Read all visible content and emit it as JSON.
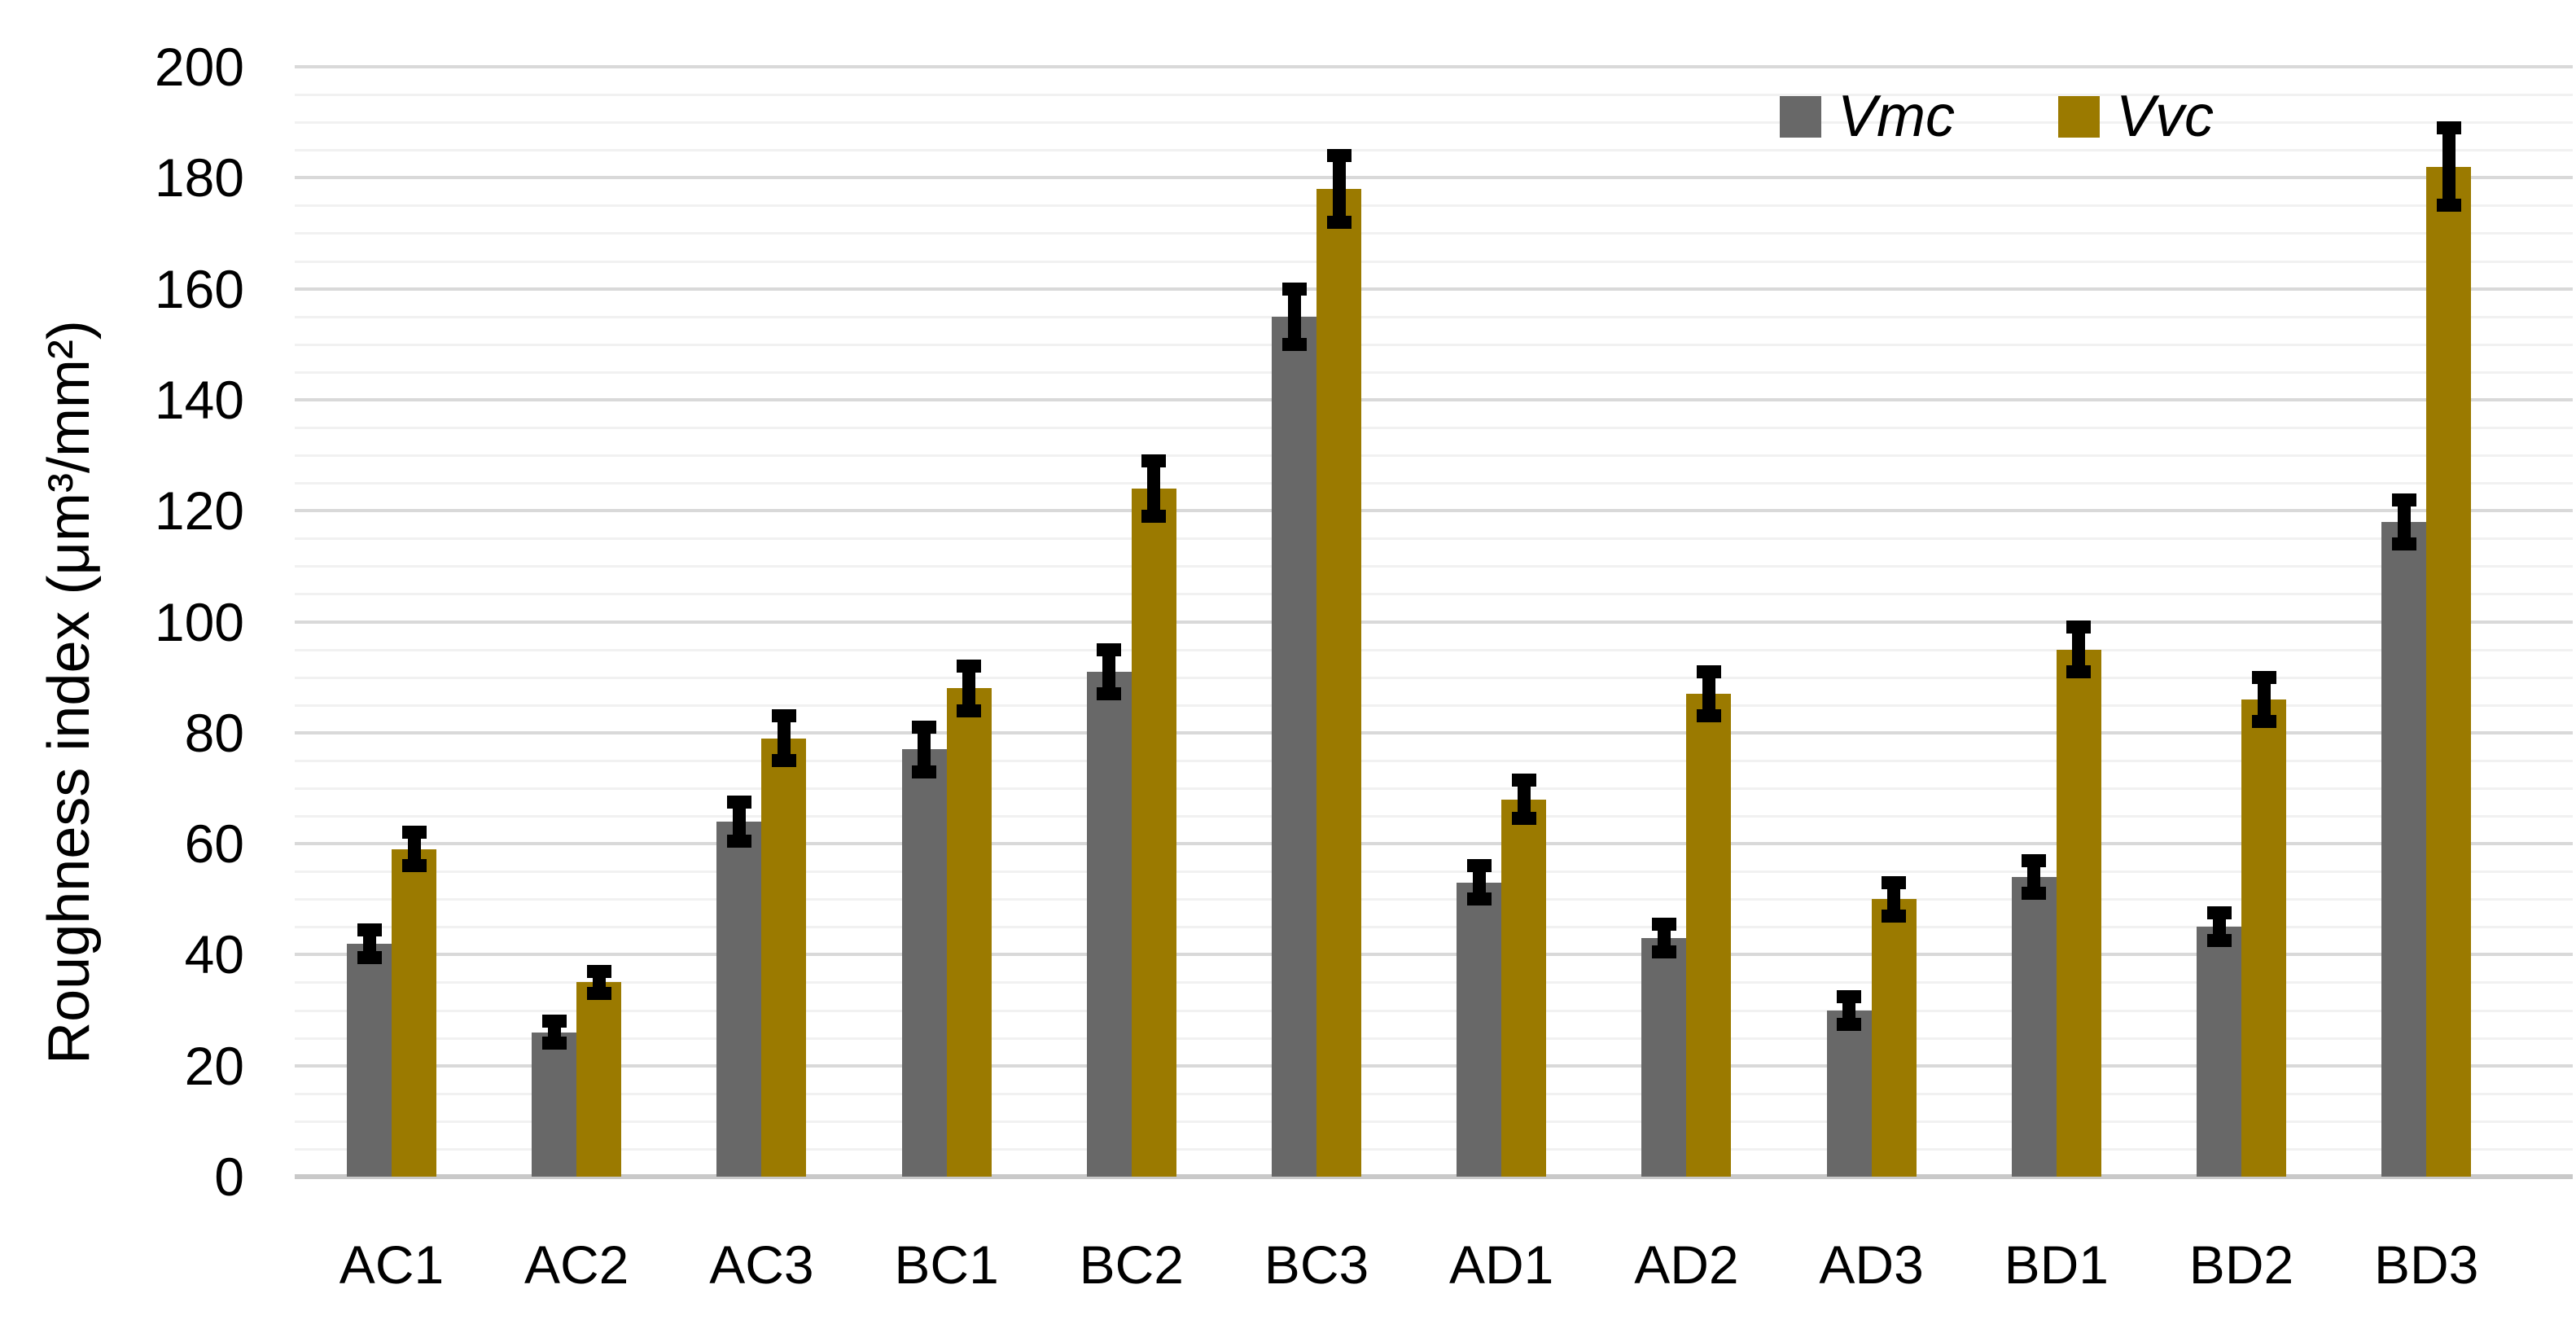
{
  "page": {
    "background": "#ffffff"
  },
  "chart_data": {
    "type": "bar",
    "title": "",
    "ylabel": "Roughness index (μm³/mm²)",
    "xlabel": "",
    "ylim": [
      0,
      200
    ],
    "yticks": [
      0,
      20,
      40,
      60,
      80,
      100,
      120,
      140,
      160,
      180,
      200
    ],
    "ytick_step": 20,
    "minor_gridline_step": 5,
    "grid": true,
    "legend_position": "top-right",
    "categories": [
      "AC1",
      "AC2",
      "AC3",
      "BC1",
      "BC2",
      "BC3",
      "AD1",
      "AD2",
      "AD3",
      "BD1",
      "BD2",
      "BD3"
    ],
    "series": [
      {
        "name": "Vmc",
        "color": "#686868",
        "values": [
          42,
          26,
          64,
          77,
          91,
          155,
          53,
          43,
          30,
          54,
          45,
          118
        ],
        "error_bars": [
          2.5,
          2,
          3.5,
          4,
          4,
          5,
          3,
          2.5,
          2.5,
          3,
          2.5,
          4
        ]
      },
      {
        "name": "Vvc",
        "color": "#9b7a00",
        "values": [
          59,
          35,
          79,
          88,
          124,
          178,
          68,
          87,
          50,
          95,
          86,
          182
        ],
        "error_bars": [
          3,
          2,
          4,
          4,
          5,
          6,
          3.5,
          4,
          3,
          4,
          4,
          7
        ]
      }
    ],
    "error_bar_color": "#000000",
    "gridline_major_color": "#d9d9d9",
    "gridline_minor_color": "#f1f1f1",
    "axis_line_color": "#c9c9c9",
    "text_color": "#000000"
  }
}
